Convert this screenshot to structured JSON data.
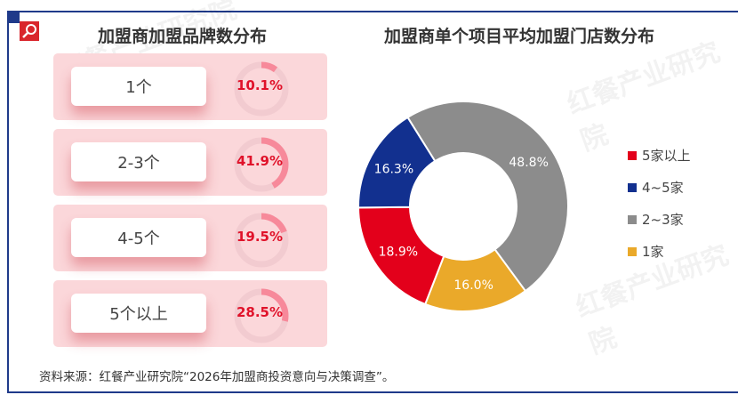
{
  "left": {
    "title": "加盟商加盟品牌数分布",
    "items": [
      {
        "label": "1个",
        "value": "10.1%",
        "fraction": 0.101
      },
      {
        "label": "2-3个",
        "value": "41.9%",
        "fraction": 0.419
      },
      {
        "label": "4-5个",
        "value": "19.5%",
        "fraction": 0.195
      },
      {
        "label": "5个以上",
        "value": "28.5%",
        "fraction": 0.285
      }
    ]
  },
  "chart_data": {
    "type": "pie",
    "title": "加盟商单个项目平均加盟门店数分布",
    "donut": true,
    "legend_position": "right",
    "slices": [
      {
        "name": "2~3家",
        "value": 48.8,
        "label": "48.8%",
        "color": "#8c8c8c"
      },
      {
        "name": "1家",
        "value": 16.0,
        "label": "16.0%",
        "color": "#eaa92a"
      },
      {
        "name": "5家以上",
        "value": 18.9,
        "label": "18.9%",
        "color": "#e3001b"
      },
      {
        "name": "4~5家",
        "value": 16.3,
        "label": "16.3%",
        "color": "#12308f"
      }
    ],
    "legend": [
      {
        "name": "5家以上",
        "color": "#e3001b"
      },
      {
        "name": "4~5家",
        "color": "#12308f"
      },
      {
        "name": "2~3家",
        "color": "#8c8c8c"
      },
      {
        "name": "1家",
        "color": "#eaa92a"
      }
    ]
  },
  "source": "资料来源：红餐产业研究院“2026年加盟商投资意向与决策调查”。",
  "watermark": "红餐产业研究院"
}
